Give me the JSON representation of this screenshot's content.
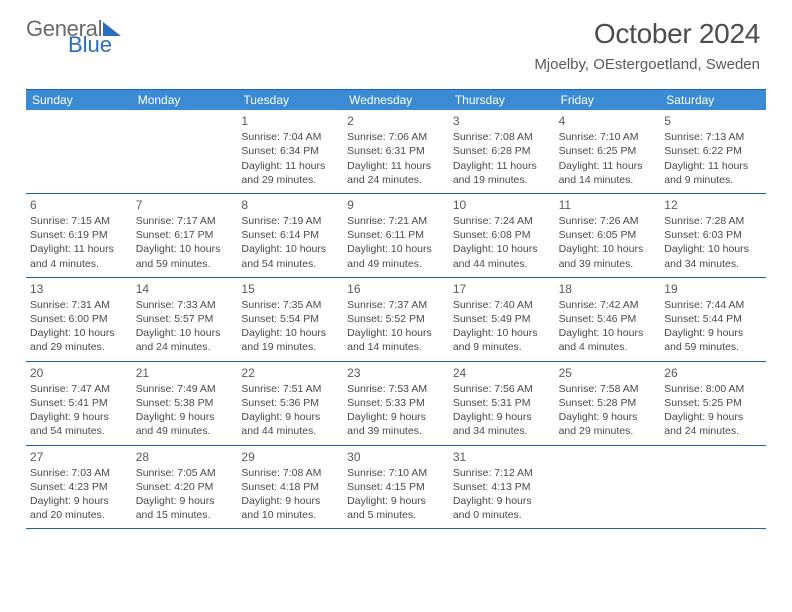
{
  "logo": {
    "text1": "General",
    "text2": "Blue"
  },
  "title": "October 2024",
  "location": "Mjoelby, OEstergoetland, Sweden",
  "day_header_bg": "#3b8bd4",
  "border_color": "#2263a8",
  "days_of_week": [
    "Sunday",
    "Monday",
    "Tuesday",
    "Wednesday",
    "Thursday",
    "Friday",
    "Saturday"
  ],
  "weeks": [
    [
      null,
      null,
      {
        "n": "1",
        "sr": "7:04 AM",
        "ss": "6:34 PM",
        "dl": "11 hours and 29 minutes."
      },
      {
        "n": "2",
        "sr": "7:06 AM",
        "ss": "6:31 PM",
        "dl": "11 hours and 24 minutes."
      },
      {
        "n": "3",
        "sr": "7:08 AM",
        "ss": "6:28 PM",
        "dl": "11 hours and 19 minutes."
      },
      {
        "n": "4",
        "sr": "7:10 AM",
        "ss": "6:25 PM",
        "dl": "11 hours and 14 minutes."
      },
      {
        "n": "5",
        "sr": "7:13 AM",
        "ss": "6:22 PM",
        "dl": "11 hours and 9 minutes."
      }
    ],
    [
      {
        "n": "6",
        "sr": "7:15 AM",
        "ss": "6:19 PM",
        "dl": "11 hours and 4 minutes."
      },
      {
        "n": "7",
        "sr": "7:17 AM",
        "ss": "6:17 PM",
        "dl": "10 hours and 59 minutes."
      },
      {
        "n": "8",
        "sr": "7:19 AM",
        "ss": "6:14 PM",
        "dl": "10 hours and 54 minutes."
      },
      {
        "n": "9",
        "sr": "7:21 AM",
        "ss": "6:11 PM",
        "dl": "10 hours and 49 minutes."
      },
      {
        "n": "10",
        "sr": "7:24 AM",
        "ss": "6:08 PM",
        "dl": "10 hours and 44 minutes."
      },
      {
        "n": "11",
        "sr": "7:26 AM",
        "ss": "6:05 PM",
        "dl": "10 hours and 39 minutes."
      },
      {
        "n": "12",
        "sr": "7:28 AM",
        "ss": "6:03 PM",
        "dl": "10 hours and 34 minutes."
      }
    ],
    [
      {
        "n": "13",
        "sr": "7:31 AM",
        "ss": "6:00 PM",
        "dl": "10 hours and 29 minutes."
      },
      {
        "n": "14",
        "sr": "7:33 AM",
        "ss": "5:57 PM",
        "dl": "10 hours and 24 minutes."
      },
      {
        "n": "15",
        "sr": "7:35 AM",
        "ss": "5:54 PM",
        "dl": "10 hours and 19 minutes."
      },
      {
        "n": "16",
        "sr": "7:37 AM",
        "ss": "5:52 PM",
        "dl": "10 hours and 14 minutes."
      },
      {
        "n": "17",
        "sr": "7:40 AM",
        "ss": "5:49 PM",
        "dl": "10 hours and 9 minutes."
      },
      {
        "n": "18",
        "sr": "7:42 AM",
        "ss": "5:46 PM",
        "dl": "10 hours and 4 minutes."
      },
      {
        "n": "19",
        "sr": "7:44 AM",
        "ss": "5:44 PM",
        "dl": "9 hours and 59 minutes."
      }
    ],
    [
      {
        "n": "20",
        "sr": "7:47 AM",
        "ss": "5:41 PM",
        "dl": "9 hours and 54 minutes."
      },
      {
        "n": "21",
        "sr": "7:49 AM",
        "ss": "5:38 PM",
        "dl": "9 hours and 49 minutes."
      },
      {
        "n": "22",
        "sr": "7:51 AM",
        "ss": "5:36 PM",
        "dl": "9 hours and 44 minutes."
      },
      {
        "n": "23",
        "sr": "7:53 AM",
        "ss": "5:33 PM",
        "dl": "9 hours and 39 minutes."
      },
      {
        "n": "24",
        "sr": "7:56 AM",
        "ss": "5:31 PM",
        "dl": "9 hours and 34 minutes."
      },
      {
        "n": "25",
        "sr": "7:58 AM",
        "ss": "5:28 PM",
        "dl": "9 hours and 29 minutes."
      },
      {
        "n": "26",
        "sr": "8:00 AM",
        "ss": "5:25 PM",
        "dl": "9 hours and 24 minutes."
      }
    ],
    [
      {
        "n": "27",
        "sr": "7:03 AM",
        "ss": "4:23 PM",
        "dl": "9 hours and 20 minutes."
      },
      {
        "n": "28",
        "sr": "7:05 AM",
        "ss": "4:20 PM",
        "dl": "9 hours and 15 minutes."
      },
      {
        "n": "29",
        "sr": "7:08 AM",
        "ss": "4:18 PM",
        "dl": "9 hours and 10 minutes."
      },
      {
        "n": "30",
        "sr": "7:10 AM",
        "ss": "4:15 PM",
        "dl": "9 hours and 5 minutes."
      },
      {
        "n": "31",
        "sr": "7:12 AM",
        "ss": "4:13 PM",
        "dl": "9 hours and 0 minutes."
      },
      null,
      null
    ]
  ]
}
